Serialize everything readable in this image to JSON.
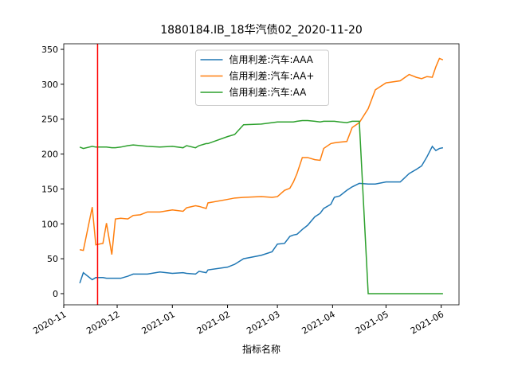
{
  "chart_data": {
    "type": "line",
    "title": "1880184.IB_18华汽债02_2020-11-20",
    "xlabel": "指标名称",
    "x": [
      "2020-11-10",
      "2020-11-12",
      "2020-11-17",
      "2020-11-19",
      "2020-11-23",
      "2020-11-25",
      "2020-11-28",
      "2020-11-30",
      "2020-12-03",
      "2020-12-07",
      "2020-12-10",
      "2020-12-14",
      "2020-12-18",
      "2020-12-25",
      "2021-01-01",
      "2021-01-07",
      "2021-01-09",
      "2021-01-14",
      "2021-01-16",
      "2021-01-20",
      "2021-01-21",
      "2021-02-01",
      "2021-02-05",
      "2021-02-10",
      "2021-02-20",
      "2021-02-26",
      "2021-03-01",
      "2021-03-05",
      "2021-03-08",
      "2021-03-10",
      "2021-03-12",
      "2021-03-15",
      "2021-03-18",
      "2021-03-22",
      "2021-03-25",
      "2021-03-27",
      "2021-03-31",
      "2021-04-02",
      "2021-04-05",
      "2021-04-09",
      "2021-04-12",
      "2021-04-16",
      "2021-04-21",
      "2021-04-25",
      "2021-05-01",
      "2021-05-09",
      "2021-05-14",
      "2021-05-18",
      "2021-05-21",
      "2021-05-24",
      "2021-05-27",
      "2021-05-29",
      "2021-05-31",
      "2021-06-02"
    ],
    "series": [
      {
        "name": "信用利差:汽车:AAA",
        "color": "#1f77b4",
        "values": [
          15,
          30,
          20,
          23,
          23,
          22,
          22,
          22,
          22,
          25,
          28,
          28,
          28,
          31,
          29,
          30,
          29,
          28,
          32,
          30,
          34,
          38,
          42,
          50,
          55,
          60,
          71,
          72,
          82,
          84,
          85,
          92,
          98,
          110,
          115,
          122,
          128,
          138,
          140,
          148,
          153,
          158,
          157,
          157,
          160,
          160,
          172,
          178,
          183,
          196,
          211,
          205,
          208,
          209
        ]
      },
      {
        "name": "信用利差:汽车:AA+",
        "color": "#ff7f0e",
        "values": [
          63,
          62,
          124,
          70,
          72,
          101,
          56,
          107,
          108,
          107,
          112,
          113,
          117,
          117,
          120,
          118,
          123,
          126,
          125,
          122,
          130,
          135,
          137,
          138,
          139,
          138,
          139,
          148,
          151,
          160,
          172,
          195,
          195,
          192,
          191,
          208,
          215,
          216,
          217,
          218,
          238,
          245,
          265,
          292,
          302,
          305,
          314,
          310,
          308,
          311,
          310,
          325,
          337,
          335
        ]
      },
      {
        "name": "信用利差:汽车:AA",
        "color": "#2ca02c",
        "values": [
          210,
          208,
          211,
          210,
          210,
          210,
          209,
          209,
          210,
          212,
          213,
          212,
          211,
          210,
          211,
          209,
          212,
          209,
          212,
          215,
          215,
          225,
          228,
          242,
          243,
          245,
          246,
          246,
          246,
          246,
          247,
          248,
          248,
          247,
          246,
          247,
          247,
          247,
          246,
          245,
          247,
          247,
          0,
          0,
          0,
          0,
          0,
          0,
          0,
          0,
          0,
          0,
          0,
          0
        ]
      }
    ],
    "vline": {
      "x": "2020-11-20",
      "color": "#ff0000"
    },
    "xlim": [
      "2020-11-01",
      "2021-06-11"
    ],
    "xticks": [
      {
        "value": "2020-11-01",
        "label": "2020-11"
      },
      {
        "value": "2020-12-01",
        "label": "2020-12"
      },
      {
        "value": "2021-01-01",
        "label": "2021-01"
      },
      {
        "value": "2021-02-01",
        "label": "2021-02"
      },
      {
        "value": "2021-03-01",
        "label": "2021-03"
      },
      {
        "value": "2021-04-01",
        "label": "2021-04"
      },
      {
        "value": "2021-05-01",
        "label": "2021-05"
      },
      {
        "value": "2021-06-01",
        "label": "2021-06"
      }
    ],
    "ylim": [
      -16,
      358
    ],
    "yticks": [
      0,
      50,
      100,
      150,
      200,
      250,
      300,
      350
    ],
    "legend": "upper center"
  }
}
